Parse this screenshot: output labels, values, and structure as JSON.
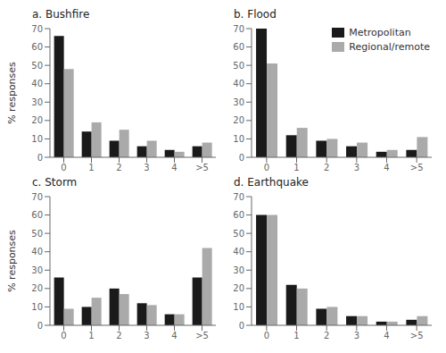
{
  "chart_data": [
    {
      "type": "bar",
      "title": "a. Bushfire",
      "categories": [
        "0",
        "1",
        "2",
        "3",
        "4",
        ">5"
      ],
      "series": [
        {
          "name": "Metropolitan",
          "color": "#1a1a1a",
          "values": [
            66,
            14,
            9,
            6,
            4,
            6
          ]
        },
        {
          "name": "Regional/remote",
          "color": "#aaaaaa",
          "values": [
            48,
            19,
            15,
            9,
            3,
            8
          ]
        }
      ],
      "ylabel": "% responses",
      "ylim": [
        0,
        70
      ],
      "yticks": [
        0,
        10,
        20,
        30,
        40,
        50,
        60,
        70
      ],
      "grid": false
    },
    {
      "type": "bar",
      "title": "b. Flood",
      "categories": [
        "0",
        "1",
        "2",
        "3",
        "4",
        ">5"
      ],
      "series": [
        {
          "name": "Metropolitan",
          "color": "#1a1a1a",
          "values": [
            70,
            12,
            9,
            6,
            3,
            4
          ]
        },
        {
          "name": "Regional/remote",
          "color": "#aaaaaa",
          "values": [
            51,
            16,
            10,
            8,
            4,
            11
          ]
        }
      ],
      "ylim": [
        0,
        70
      ],
      "yticks": [
        0,
        10,
        20,
        30,
        40,
        50,
        60,
        70
      ],
      "grid": false,
      "legend": "upper right"
    },
    {
      "type": "bar",
      "title": "c. Storm",
      "categories": [
        "0",
        "1",
        "2",
        "3",
        "4",
        ">5"
      ],
      "series": [
        {
          "name": "Metropolitan",
          "color": "#1a1a1a",
          "values": [
            26,
            10,
            20,
            12,
            6,
            26
          ]
        },
        {
          "name": "Regional/remote",
          "color": "#aaaaaa",
          "values": [
            9,
            15,
            17,
            11,
            6,
            42
          ]
        }
      ],
      "ylabel": "% responses",
      "ylim": [
        0,
        70
      ],
      "yticks": [
        0,
        10,
        20,
        30,
        40,
        50,
        60,
        70
      ],
      "grid": false
    },
    {
      "type": "bar",
      "title": "d. Earthquake",
      "categories": [
        "0",
        "1",
        "2",
        "3",
        "4",
        ">5"
      ],
      "series": [
        {
          "name": "Metropolitan",
          "color": "#1a1a1a",
          "values": [
            60,
            22,
            9,
            5,
            2,
            3
          ]
        },
        {
          "name": "Regional/remote",
          "color": "#aaaaaa",
          "values": [
            60,
            20,
            10,
            5,
            2,
            5
          ]
        }
      ],
      "ylim": [
        0,
        70
      ],
      "yticks": [
        0,
        10,
        20,
        30,
        40,
        50,
        60,
        70
      ],
      "grid": false
    }
  ]
}
